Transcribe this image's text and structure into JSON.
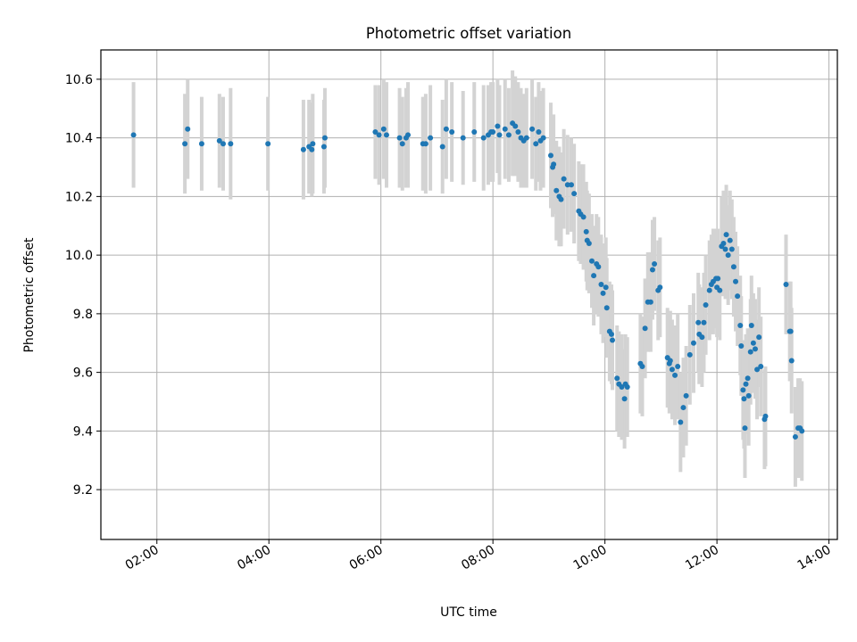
{
  "chart_data": {
    "type": "scatter",
    "title": "Photometric offset variation",
    "xlabel": "UTC time",
    "ylabel": "Photometric offset",
    "x_unit": "UTC hours",
    "xlim": [
      "01:00",
      "14:09"
    ],
    "ylim": [
      9.03,
      10.7
    ],
    "xticks": [
      "02:00",
      "04:00",
      "06:00",
      "08:00",
      "10:00",
      "12:00",
      "14:00"
    ],
    "yticks": [
      "9.2",
      "9.4",
      "9.6",
      "9.8",
      "10.0",
      "10.2",
      "10.4",
      "10.6"
    ],
    "grid": true,
    "colors": {
      "points": "#1f77b4",
      "errorbars": "#d3d3d3"
    },
    "series": [
      {
        "errorbar": true,
        "points": [
          [
            "01:35",
            10.41,
            0.18
          ],
          [
            "02:30",
            10.38,
            0.17
          ],
          [
            "02:33",
            10.43,
            0.17
          ],
          [
            "02:48",
            10.38,
            0.16
          ],
          [
            "03:07",
            10.39,
            0.16
          ],
          [
            "03:11",
            10.38,
            0.16
          ],
          [
            "03:19",
            10.38,
            0.19
          ],
          [
            "03:59",
            10.38,
            0.16
          ],
          [
            "04:37",
            10.36,
            0.17
          ],
          [
            "04:43",
            10.37,
            0.16
          ],
          [
            "04:46",
            10.36,
            0.16
          ],
          [
            "04:47",
            10.38,
            0.17
          ],
          [
            "04:59",
            10.37,
            0.16
          ],
          [
            "05:00",
            10.4,
            0.17
          ],
          [
            "05:54",
            10.42,
            0.16
          ],
          [
            "05:58",
            10.41,
            0.17
          ],
          [
            "06:03",
            10.43,
            0.17
          ],
          [
            "06:06",
            10.41,
            0.18
          ],
          [
            "06:20",
            10.4,
            0.17
          ],
          [
            "06:23",
            10.38,
            0.16
          ],
          [
            "06:27",
            10.4,
            0.17
          ],
          [
            "06:29",
            10.41,
            0.18
          ],
          [
            "06:45",
            10.38,
            0.16
          ],
          [
            "06:48",
            10.38,
            0.17
          ],
          [
            "06:53",
            10.4,
            0.18
          ],
          [
            "07:06",
            10.37,
            0.16
          ],
          [
            "07:10",
            10.43,
            0.17
          ],
          [
            "07:16",
            10.42,
            0.17
          ],
          [
            "07:28",
            10.4,
            0.16
          ],
          [
            "07:40",
            10.42,
            0.17
          ],
          [
            "07:50",
            10.4,
            0.18
          ],
          [
            "07:55",
            10.41,
            0.17
          ],
          [
            "07:58",
            10.42,
            0.17
          ],
          [
            "08:00",
            10.42,
            0.17
          ],
          [
            "08:05",
            10.44,
            0.16
          ],
          [
            "08:07",
            10.41,
            0.17
          ],
          [
            "08:13",
            10.43,
            0.17
          ],
          [
            "08:17",
            10.41,
            0.16
          ],
          [
            "08:21",
            10.45,
            0.18
          ],
          [
            "08:24",
            10.44,
            0.17
          ],
          [
            "08:27",
            10.42,
            0.17
          ],
          [
            "08:30",
            10.4,
            0.17
          ],
          [
            "08:33",
            10.39,
            0.16
          ],
          [
            "08:36",
            10.4,
            0.17
          ],
          [
            "08:42",
            10.43,
            0.17
          ],
          [
            "08:46",
            10.38,
            0.16
          ],
          [
            "08:49",
            10.42,
            0.17
          ],
          [
            "08:51",
            10.39,
            0.17
          ],
          [
            "08:54",
            10.4,
            0.17
          ],
          [
            "09:02",
            10.34,
            0.18
          ],
          [
            "09:04",
            10.3,
            0.17
          ],
          [
            "09:05",
            10.31,
            0.17
          ],
          [
            "09:08",
            10.22,
            0.17
          ],
          [
            "09:11",
            10.2,
            0.17
          ],
          [
            "09:13",
            10.19,
            0.16
          ],
          [
            "09:16",
            10.26,
            0.17
          ],
          [
            "09:20",
            10.24,
            0.17
          ],
          [
            "09:24",
            10.24,
            0.16
          ],
          [
            "09:27",
            10.21,
            0.17
          ],
          [
            "09:32",
            10.15,
            0.17
          ],
          [
            "09:34",
            10.14,
            0.17
          ],
          [
            "09:37",
            10.13,
            0.18
          ],
          [
            "09:40",
            10.08,
            0.17
          ],
          [
            "09:41",
            10.05,
            0.17
          ],
          [
            "09:43",
            10.04,
            0.17
          ],
          [
            "09:46",
            9.98,
            0.16
          ],
          [
            "09:48",
            9.93,
            0.17
          ],
          [
            "09:51",
            9.97,
            0.17
          ],
          [
            "09:53",
            9.96,
            0.17
          ],
          [
            "09:56",
            9.9,
            0.17
          ],
          [
            "09:58",
            9.87,
            0.17
          ],
          [
            "10:01",
            9.89,
            0.17
          ],
          [
            "10:02",
            9.82,
            0.17
          ],
          [
            "10:05",
            9.74,
            0.17
          ],
          [
            "10:07",
            9.73,
            0.17
          ],
          [
            "10:08",
            9.71,
            0.17
          ],
          [
            "10:13",
            9.58,
            0.18
          ],
          [
            "10:15",
            9.56,
            0.18
          ],
          [
            "10:18",
            9.55,
            0.18
          ],
          [
            "10:21",
            9.51,
            0.17
          ],
          [
            "10:22",
            9.56,
            0.17
          ],
          [
            "10:24",
            9.55,
            0.17
          ],
          [
            "10:38",
            9.63,
            0.17
          ],
          [
            "10:40",
            9.62,
            0.17
          ],
          [
            "10:43",
            9.75,
            0.17
          ],
          [
            "10:46",
            9.84,
            0.17
          ],
          [
            "10:49",
            9.84,
            0.17
          ],
          [
            "10:51",
            9.95,
            0.17
          ],
          [
            "10:53",
            9.97,
            0.16
          ],
          [
            "10:57",
            9.88,
            0.17
          ],
          [
            "10:59",
            9.89,
            0.17
          ],
          [
            "11:07",
            9.65,
            0.17
          ],
          [
            "11:09",
            9.63,
            0.17
          ],
          [
            "11:10",
            9.64,
            0.17
          ],
          [
            "11:12",
            9.61,
            0.17
          ],
          [
            "11:15",
            9.59,
            0.17
          ],
          [
            "11:18",
            9.62,
            0.18
          ],
          [
            "11:21",
            9.43,
            0.17
          ],
          [
            "11:24",
            9.48,
            0.17
          ],
          [
            "11:27",
            9.52,
            0.17
          ],
          [
            "11:31",
            9.66,
            0.17
          ],
          [
            "11:35",
            9.7,
            0.17
          ],
          [
            "11:40",
            9.77,
            0.17
          ],
          [
            "11:41",
            9.73,
            0.17
          ],
          [
            "11:44",
            9.72,
            0.17
          ],
          [
            "11:46",
            9.77,
            0.17
          ],
          [
            "11:48",
            9.83,
            0.17
          ],
          [
            "11:52",
            9.88,
            0.17
          ],
          [
            "11:54",
            9.9,
            0.17
          ],
          [
            "11:56",
            9.91,
            0.18
          ],
          [
            "11:59",
            9.92,
            0.17
          ],
          [
            "12:00",
            9.89,
            0.17
          ],
          [
            "12:01",
            9.92,
            0.17
          ],
          [
            "12:03",
            9.88,
            0.17
          ],
          [
            "12:05",
            10.03,
            0.17
          ],
          [
            "12:07",
            10.04,
            0.18
          ],
          [
            "12:09",
            10.02,
            0.17
          ],
          [
            "12:10",
            10.07,
            0.17
          ],
          [
            "12:12",
            10.0,
            0.17
          ],
          [
            "12:14",
            10.05,
            0.17
          ],
          [
            "12:16",
            10.02,
            0.17
          ],
          [
            "12:18",
            9.96,
            0.17
          ],
          [
            "12:20",
            9.91,
            0.17
          ],
          [
            "12:22",
            9.86,
            0.17
          ],
          [
            "12:25",
            9.76,
            0.17
          ],
          [
            "12:26",
            9.69,
            0.17
          ],
          [
            "12:28",
            9.54,
            0.17
          ],
          [
            "12:29",
            9.51,
            0.17
          ],
          [
            "12:30",
            9.41,
            0.17
          ],
          [
            "12:31",
            9.56,
            0.17
          ],
          [
            "12:33",
            9.58,
            0.17
          ],
          [
            "12:34",
            9.52,
            0.17
          ],
          [
            "12:36",
            9.67,
            0.18
          ],
          [
            "12:37",
            9.76,
            0.17
          ],
          [
            "12:39",
            9.7,
            0.17
          ],
          [
            "12:41",
            9.68,
            0.17
          ],
          [
            "12:43",
            9.61,
            0.17
          ],
          [
            "12:45",
            9.72,
            0.17
          ],
          [
            "12:47",
            9.62,
            0.17
          ],
          [
            "12:51",
            9.44,
            0.17
          ],
          [
            "12:52",
            9.45,
            0.17
          ],
          [
            "13:14",
            9.9,
            0.17
          ],
          [
            "13:18",
            9.74,
            0.17
          ],
          [
            "13:19",
            9.74,
            0.17
          ],
          [
            "13:20",
            9.64,
            0.18
          ],
          [
            "13:24",
            9.38,
            0.17
          ],
          [
            "13:27",
            9.41,
            0.17
          ],
          [
            "13:29",
            9.41,
            0.17
          ],
          [
            "13:31",
            9.4,
            0.17
          ]
        ]
      }
    ]
  }
}
